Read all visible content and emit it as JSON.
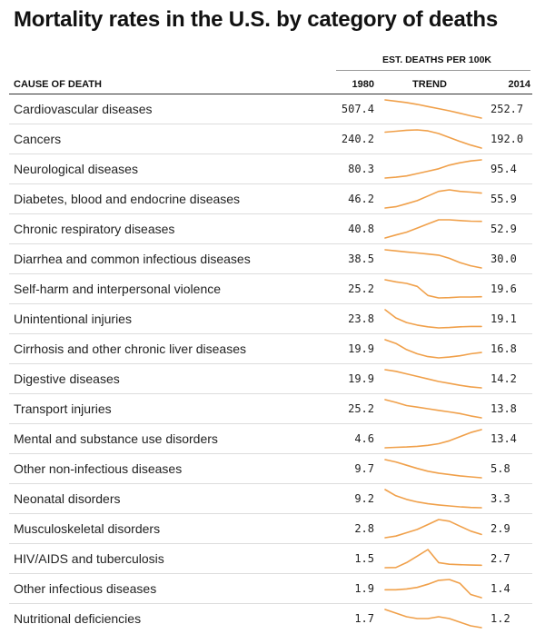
{
  "chart_data": {
    "type": "table",
    "title": "Mortality rates in the U.S. by category of deaths",
    "group_label": "EST. DEATHS PER 100K",
    "columns": [
      "CAUSE OF DEATH",
      "1980",
      "TREND",
      "2014"
    ],
    "trend_color": "#f0a04a",
    "rows": [
      {
        "cause": "Cardiovascular diseases",
        "v1980": "507.4",
        "v2014": "252.7",
        "trend": [
          507.4,
          490,
          470,
          445,
          415,
          385,
          355,
          320,
          285,
          252.7
        ]
      },
      {
        "cause": "Cancers",
        "v1980": "240.2",
        "v2014": "192.0",
        "trend": [
          240.2,
          243,
          246,
          247,
          244,
          236,
          224,
          212,
          201,
          192.0
        ]
      },
      {
        "cause": "Neurological diseases",
        "v1980": "80.3",
        "v2014": "95.4",
        "trend": [
          80.3,
          81,
          82,
          84,
          86,
          88,
          91,
          93,
          94.5,
          95.4
        ]
      },
      {
        "cause": "Diabetes, blood and endocrine diseases",
        "v1980": "46.2",
        "v2014": "55.9",
        "trend": [
          46.2,
          47,
          49,
          51,
          54,
          57,
          58,
          57,
          56.5,
          55.9
        ]
      },
      {
        "cause": "Chronic respiratory diseases",
        "v1980": "40.8",
        "v2014": "52.9",
        "trend": [
          40.8,
          43,
          45,
          48,
          51,
          54,
          54,
          53.5,
          53,
          52.9
        ]
      },
      {
        "cause": "Diarrhea and common infectious diseases",
        "v1980": "38.5",
        "v2014": "30.0",
        "trend": [
          38.5,
          38,
          37.5,
          37,
          36.5,
          36,
          34.5,
          32.5,
          31,
          30.0
        ]
      },
      {
        "cause": "Self-harm and interpersonal violence",
        "v1980": "25.2",
        "v2014": "19.6",
        "trend": [
          25.2,
          24.5,
          24,
          23,
          20,
          19.2,
          19.3,
          19.5,
          19.5,
          19.6
        ]
      },
      {
        "cause": "Unintentional injuries",
        "v1980": "23.8",
        "v2014": "19.1",
        "trend": [
          23.8,
          21.5,
          20.2,
          19.5,
          19,
          18.7,
          18.8,
          19,
          19.1,
          19.1
        ]
      },
      {
        "cause": "Cirrhosis and other chronic liver diseases",
        "v1980": "19.9",
        "v2014": "16.8",
        "trend": [
          19.9,
          19,
          17.5,
          16.5,
          15.8,
          15.5,
          15.7,
          16,
          16.5,
          16.8
        ]
      },
      {
        "cause": "Digestive diseases",
        "v1980": "19.9",
        "v2014": "14.2",
        "trend": [
          19.9,
          19.4,
          18.6,
          17.8,
          17,
          16.2,
          15.6,
          15,
          14.5,
          14.2
        ]
      },
      {
        "cause": "Transport injuries",
        "v1980": "25.2",
        "v2014": "13.8",
        "trend": [
          25.2,
          23.5,
          21.5,
          20.5,
          19.5,
          18.5,
          17.5,
          16.5,
          15,
          13.8
        ]
      },
      {
        "cause": "Mental and substance use disorders",
        "v1980": "4.6",
        "v2014": "13.4",
        "trend": [
          4.6,
          4.8,
          5,
          5.3,
          5.8,
          6.6,
          8,
          10,
          12,
          13.4
        ]
      },
      {
        "cause": "Other non-infectious diseases",
        "v1980": "9.7",
        "v2014": "5.8",
        "trend": [
          9.7,
          9.2,
          8.5,
          7.8,
          7.2,
          6.8,
          6.5,
          6.2,
          6,
          5.8
        ]
      },
      {
        "cause": "Neonatal disorders",
        "v1980": "9.2",
        "v2014": "3.3",
        "trend": [
          9.2,
          7.2,
          6,
          5.2,
          4.6,
          4.2,
          3.9,
          3.6,
          3.4,
          3.3
        ]
      },
      {
        "cause": "Musculoskeletal disorders",
        "v1980": "2.8",
        "v2014": "2.9",
        "trend": [
          2.8,
          2.85,
          2.95,
          3.05,
          3.2,
          3.35,
          3.3,
          3.15,
          3,
          2.9
        ]
      },
      {
        "cause": "HIV/AIDS and tuberculosis",
        "v1980": "1.5",
        "v2014": "2.7",
        "trend": [
          1.5,
          1.6,
          4,
          7.2,
          10.5,
          4,
          3.2,
          3,
          2.8,
          2.7
        ]
      },
      {
        "cause": "Other infectious diseases",
        "v1980": "1.9",
        "v2014": "1.4",
        "trend": [
          1.9,
          1.9,
          1.95,
          2.05,
          2.25,
          2.5,
          2.55,
          2.3,
          1.6,
          1.4
        ]
      },
      {
        "cause": "Nutritional deficiencies",
        "v1980": "1.7",
        "v2014": "1.2",
        "trend": [
          1.7,
          1.6,
          1.5,
          1.45,
          1.45,
          1.5,
          1.45,
          1.35,
          1.25,
          1.2
        ]
      }
    ]
  }
}
